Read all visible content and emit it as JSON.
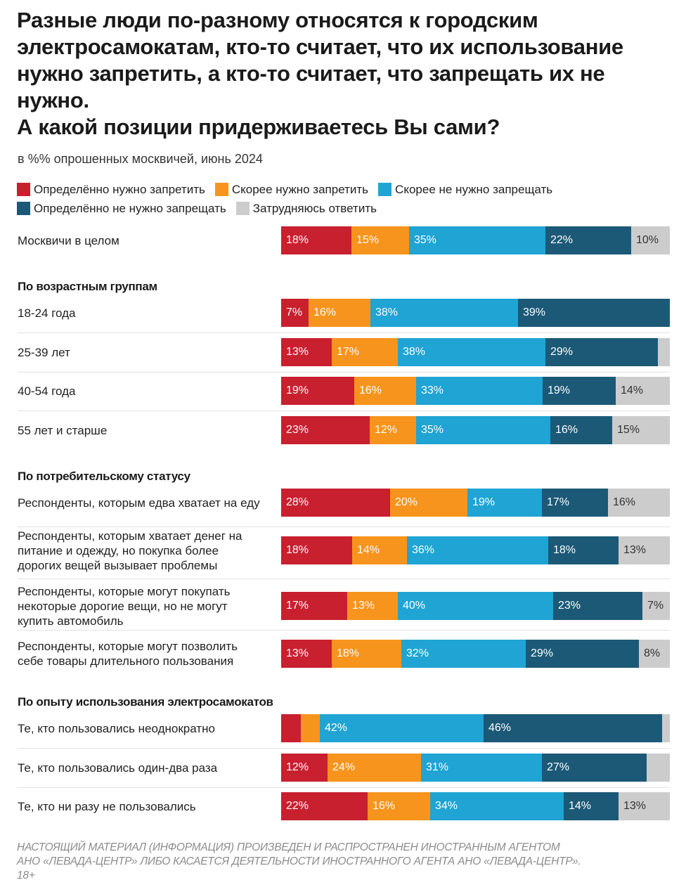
{
  "title": "Разные люди по-разному относятся к городским\nэлектросамокатам, кто-то считает, что их использование\nнужно запретить, а кто-то считает, что запрещать их не\nнужно.\nА какой позиции придерживаетесь Вы сами?",
  "subtitle": "в %% опрошенных москвичей, июнь 2024",
  "footer": {
    "line1": "НАСТОЯЩИЙ МАТЕРИАЛ (ИНФОРМАЦИЯ) ПРОИЗВЕДЕН И РАСПРОСТРАНЕН ИНОСТРАННЫМ АГЕНТОМ",
    "line2": "АНО «ЛЕВАДА-ЦЕНТР» ЛИБО КАСАЕТСЯ ДЕЯТЕЛЬНОСТИ ИНОСТРАННОГО АГЕНТА АНО «ЛЕВАДА-ЦЕНТР».",
    "line3": "18+"
  },
  "chart_data": {
    "type": "bar",
    "orientation": "horizontal",
    "stacked": true,
    "normalized": true,
    "legend_position": "top",
    "series": [
      {
        "name": "Определённо нужно запретить",
        "color": "#c8202f"
      },
      {
        "name": "Скорее нужно запретить",
        "color": "#f7941d"
      },
      {
        "name": "Скорее не нужно запрещать",
        "color": "#1fa4d3"
      },
      {
        "name": "Определённо не нужно запрещать",
        "color": "#1b5977"
      },
      {
        "name": "Затрудняюсь ответить",
        "color": "#cccccc"
      }
    ],
    "groups": [
      {
        "title": "",
        "rows": [
          {
            "label": "Москвичи в целом",
            "values": [
              18,
              15,
              35,
              22,
              10
            ],
            "labels": [
              "18%",
              "15%",
              "35%",
              "22%",
              "10%"
            ]
          }
        ]
      },
      {
        "title": "По возрастным группам",
        "rows": [
          {
            "label": "18-24 года",
            "values": [
              7,
              16,
              38,
              39,
              0
            ],
            "labels": [
              "7%",
              "16%",
              "38%",
              "39%",
              ""
            ]
          },
          {
            "label": "25-39 лет",
            "values": [
              13,
              17,
              38,
              29,
              3
            ],
            "labels": [
              "13%",
              "17%",
              "38%",
              "29%",
              ""
            ]
          },
          {
            "label": "40-54 года",
            "values": [
              19,
              16,
              33,
              19,
              14
            ],
            "labels": [
              "19%",
              "16%",
              "33%",
              "19%",
              "14%"
            ]
          },
          {
            "label": "55 лет и старше",
            "values": [
              23,
              12,
              35,
              16,
              15
            ],
            "labels": [
              "23%",
              "12%",
              "35%",
              "16%",
              "15%"
            ]
          }
        ]
      },
      {
        "title": "По потребительскому статусу",
        "rows": [
          {
            "label": "Респонденты, которым едва хватает на еду",
            "values": [
              28,
              20,
              19,
              17,
              16
            ],
            "labels": [
              "28%",
              "20%",
              "19%",
              "17%",
              "16%"
            ]
          },
          {
            "label": "Респонденты, которым хватает денег на\nпитание и одежду, но покупка более\nдорогих вещей вызывает проблемы",
            "values": [
              18,
              14,
              36,
              18,
              13
            ],
            "labels": [
              "18%",
              "14%",
              "36%",
              "18%",
              "13%"
            ]
          },
          {
            "label": "Респонденты, которые могут покупать\nнекоторые дорогие вещи, но не могут\nкупить автомобиль",
            "values": [
              17,
              13,
              40,
              23,
              7
            ],
            "labels": [
              "17%",
              "13%",
              "40%",
              "23%",
              "7%"
            ]
          },
          {
            "label": "Респонденты, которые могут позволить\nсебе товары длительного пользования",
            "values": [
              13,
              18,
              32,
              29,
              8
            ],
            "labels": [
              "13%",
              "18%",
              "32%",
              "29%",
              "8%"
            ]
          }
        ]
      },
      {
        "title": "По опыту использования электросамокатов",
        "rows": [
          {
            "label": "Те, кто пользовались неоднократно",
            "values": [
              5,
              5,
              42,
              46,
              2
            ],
            "labels": [
              "",
              "",
              "42%",
              "46%",
              ""
            ]
          },
          {
            "label": "Те, кто пользовались один-два раза",
            "values": [
              12,
              24,
              31,
              27,
              6
            ],
            "labels": [
              "12%",
              "24%",
              "31%",
              "27%",
              ""
            ]
          },
          {
            "label": "Те, кто ни разу не пользовались",
            "values": [
              22,
              16,
              34,
              14,
              13
            ],
            "labels": [
              "22%",
              "16%",
              "34%",
              "14%",
              "13%"
            ]
          }
        ]
      }
    ]
  }
}
